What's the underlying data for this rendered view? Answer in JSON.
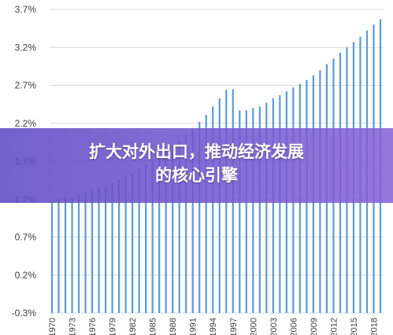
{
  "banner": {
    "line1": "扩大对外出口，推动经济发展",
    "line2": "的核心引擎"
  },
  "colors": {
    "bar": "#5b9bd5",
    "grid": "#d9d9d9",
    "axis_text": "#404040",
    "banner_start": "#604cc4",
    "banner_end": "#8460d6"
  },
  "chart_data": {
    "type": "bar",
    "title": "",
    "xlabel": "",
    "ylabel": "",
    "ylim": [
      -0.3,
      3.7
    ],
    "y_ticks": [
      "3.7%",
      "3.2%",
      "2.7%",
      "2.2%",
      "1.7%",
      "1.2%",
      "0.7%",
      "0.2%",
      "-0.3%"
    ],
    "y_tick_values": [
      3.7,
      3.2,
      2.7,
      2.2,
      1.7,
      1.2,
      0.7,
      0.2,
      -0.3
    ],
    "x_tick_labels": [
      "1970",
      "1973",
      "1976",
      "1979",
      "1982",
      "1985",
      "1988",
      "1991",
      "1994",
      "1997",
      "2000",
      "2003",
      "2006",
      "2009",
      "2012",
      "2015",
      "2018"
    ],
    "categories": [
      "1970",
      "1971",
      "1972",
      "1973",
      "1974",
      "1975",
      "1976",
      "1977",
      "1978",
      "1979",
      "1980",
      "1981",
      "1982",
      "1983",
      "1984",
      "1985",
      "1986",
      "1987",
      "1988",
      "1989",
      "1990",
      "1991",
      "1992",
      "1993",
      "1994",
      "1995",
      "1996",
      "1997",
      "1998",
      "1999",
      "2000",
      "2001",
      "2002",
      "2003",
      "2004",
      "2005",
      "2006",
      "2007",
      "2008",
      "2009",
      "2010",
      "2011",
      "2012",
      "2013",
      "2014",
      "2015",
      "2016",
      "2017",
      "2018",
      "2019"
    ],
    "values": [
      1.17,
      1.19,
      1.21,
      1.23,
      1.26,
      1.29,
      1.32,
      1.35,
      1.38,
      1.42,
      1.46,
      1.5,
      1.55,
      1.6,
      1.66,
      1.72,
      1.78,
      1.84,
      1.91,
      1.98,
      2.05,
      2.13,
      2.22,
      2.31,
      2.42,
      2.53,
      2.64,
      2.65,
      2.37,
      2.37,
      2.4,
      2.42,
      2.47,
      2.53,
      2.57,
      2.62,
      2.67,
      2.72,
      2.77,
      2.83,
      2.9,
      2.98,
      3.05,
      3.13,
      3.2,
      3.27,
      3.34,
      3.42,
      3.5,
      3.57
    ],
    "grid": true,
    "legend": "none"
  }
}
